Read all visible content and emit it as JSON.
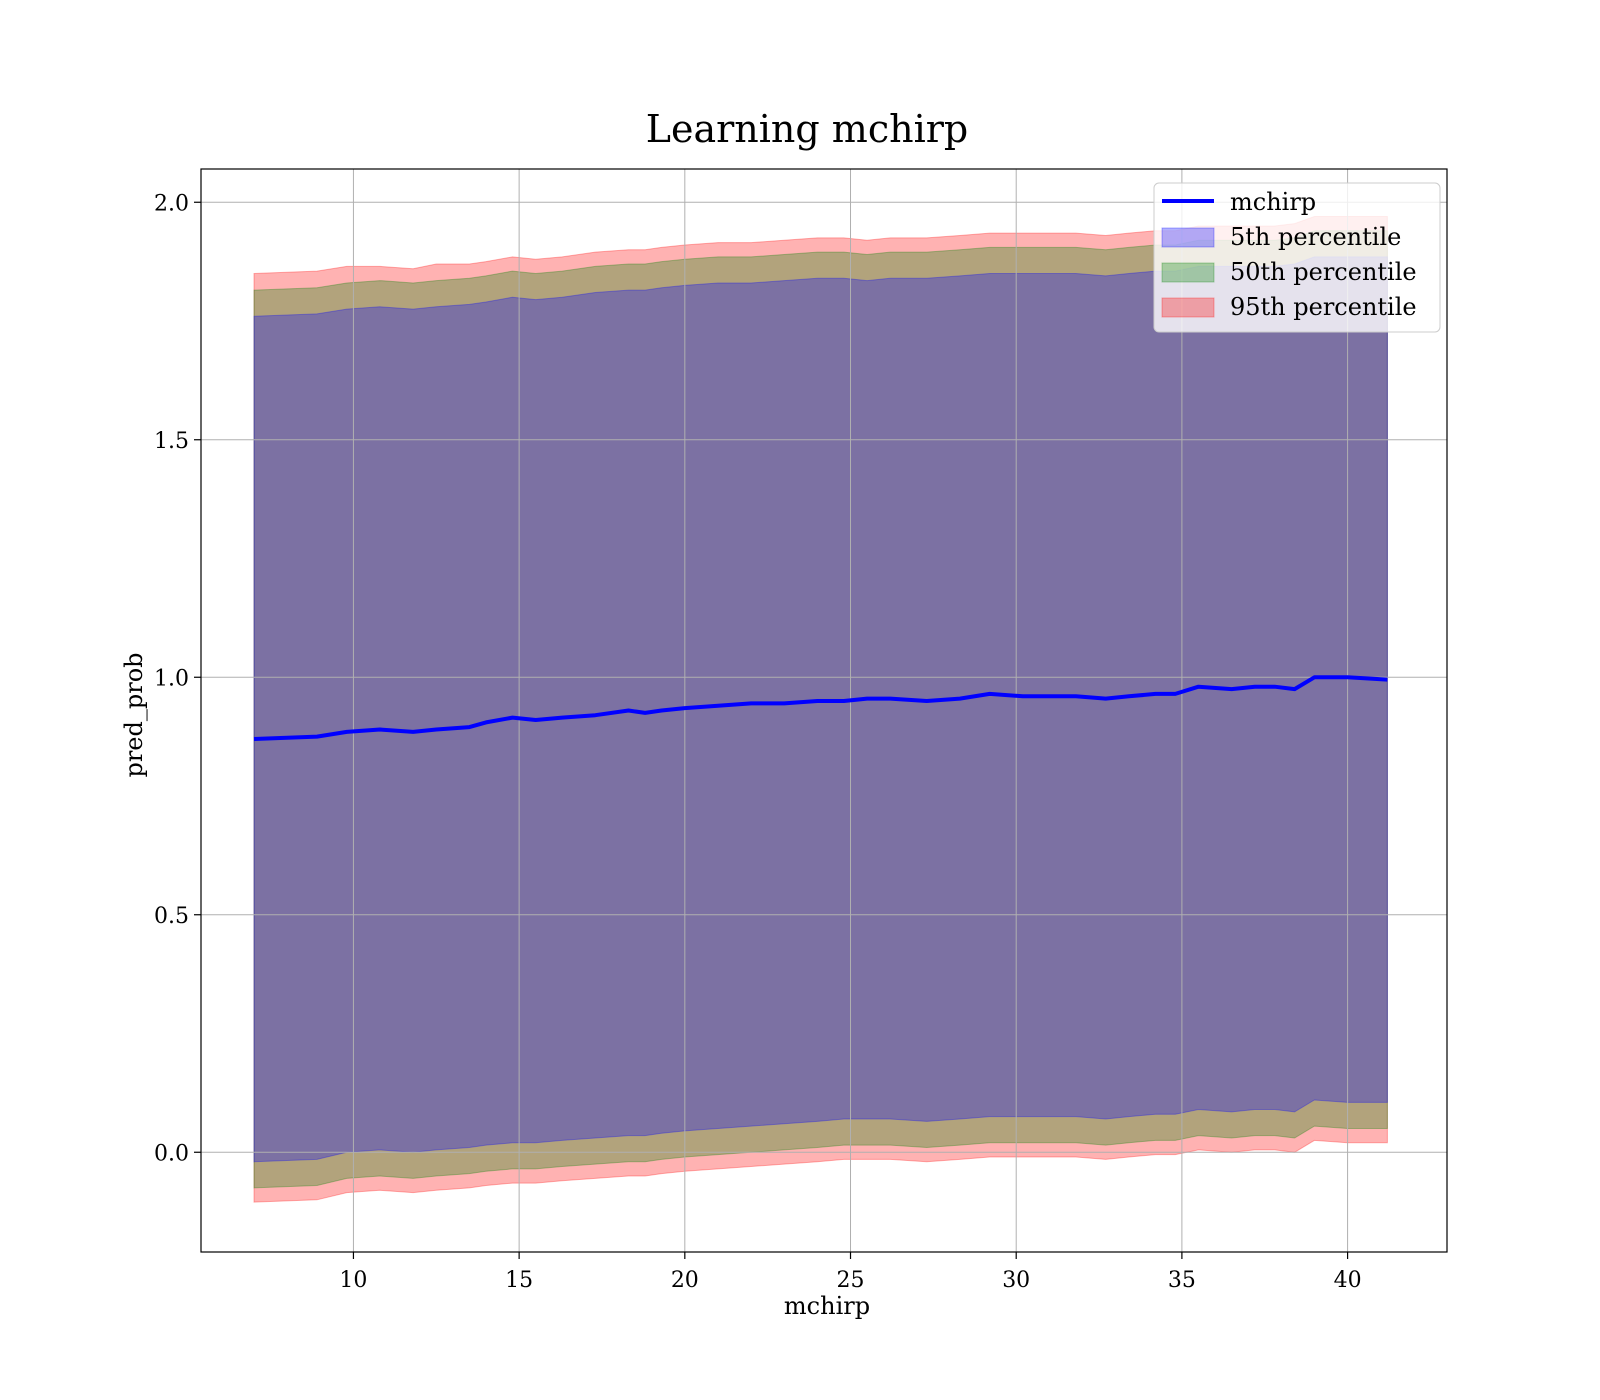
{
  "chart_data": {
    "type": "area",
    "title": "Learning mchirp",
    "xlabel": "mchirp",
    "ylabel": "pred_prob",
    "xlim": [
      5.4,
      43.0
    ],
    "ylim": [
      -0.21,
      2.07
    ],
    "xticks": [
      10,
      15,
      20,
      25,
      30,
      35,
      40
    ],
    "yticks": [
      0.0,
      0.5,
      1.0,
      1.5,
      2.0
    ],
    "xtick_labels": [
      "10",
      "15",
      "20",
      "25",
      "30",
      "35",
      "40"
    ],
    "ytick_labels": [
      "0.0",
      "0.5",
      "1.0",
      "1.5",
      "2.0"
    ],
    "grid": true,
    "legend_position": "top-right",
    "x": [
      7.0,
      8.9,
      9.8,
      10.8,
      11.8,
      12.5,
      13.5,
      14.0,
      14.8,
      15.5,
      16.3,
      17.3,
      18.3,
      18.8,
      19.3,
      20.0,
      21.0,
      22.0,
      23.0,
      24.0,
      24.8,
      25.5,
      26.2,
      27.3,
      28.3,
      29.2,
      30.2,
      31.2,
      31.8,
      32.7,
      33.4,
      34.2,
      34.8,
      35.5,
      36.5,
      37.2,
      37.8,
      38.4,
      39.0,
      40.0,
      41.2
    ],
    "line": {
      "name": "mchirp",
      "color": "#0000ff",
      "values": [
        0.87,
        0.875,
        0.885,
        0.89,
        0.885,
        0.89,
        0.895,
        0.905,
        0.915,
        0.91,
        0.915,
        0.92,
        0.93,
        0.925,
        0.93,
        0.935,
        0.94,
        0.945,
        0.945,
        0.95,
        0.95,
        0.955,
        0.955,
        0.95,
        0.955,
        0.965,
        0.96,
        0.96,
        0.96,
        0.955,
        0.96,
        0.965,
        0.965,
        0.98,
        0.975,
        0.98,
        0.98,
        0.975,
        1.0,
        1.0,
        0.995
      ]
    },
    "series": [
      {
        "name": "95th percentile",
        "color": "#ff0000",
        "upper": [
          1.85,
          1.855,
          1.865,
          1.865,
          1.86,
          1.87,
          1.87,
          1.875,
          1.885,
          1.88,
          1.885,
          1.895,
          1.9,
          1.9,
          1.905,
          1.91,
          1.915,
          1.915,
          1.92,
          1.925,
          1.925,
          1.92,
          1.925,
          1.925,
          1.93,
          1.935,
          1.935,
          1.935,
          1.935,
          1.93,
          1.935,
          1.94,
          1.94,
          1.95,
          1.95,
          1.95,
          1.95,
          1.955,
          1.97,
          1.97,
          1.97
        ],
        "lower": [
          -0.105,
          -0.1,
          -0.085,
          -0.08,
          -0.085,
          -0.08,
          -0.075,
          -0.07,
          -0.065,
          -0.065,
          -0.06,
          -0.055,
          -0.05,
          -0.05,
          -0.045,
          -0.04,
          -0.035,
          -0.03,
          -0.025,
          -0.02,
          -0.015,
          -0.015,
          -0.015,
          -0.02,
          -0.015,
          -0.01,
          -0.01,
          -0.01,
          -0.01,
          -0.015,
          -0.01,
          -0.005,
          -0.005,
          0.005,
          0.0,
          0.005,
          0.005,
          0.0,
          0.025,
          0.02,
          0.02
        ]
      },
      {
        "name": "50th percentile",
        "color": "#008000",
        "upper": [
          1.815,
          1.82,
          1.83,
          1.835,
          1.83,
          1.835,
          1.84,
          1.845,
          1.855,
          1.85,
          1.855,
          1.865,
          1.87,
          1.87,
          1.875,
          1.88,
          1.885,
          1.885,
          1.89,
          1.895,
          1.895,
          1.89,
          1.895,
          1.895,
          1.9,
          1.905,
          1.905,
          1.905,
          1.905,
          1.9,
          1.905,
          1.91,
          1.91,
          1.92,
          1.92,
          1.92,
          1.92,
          1.925,
          1.94,
          1.94,
          1.94
        ],
        "lower": [
          -0.075,
          -0.07,
          -0.055,
          -0.05,
          -0.055,
          -0.05,
          -0.045,
          -0.04,
          -0.035,
          -0.035,
          -0.03,
          -0.025,
          -0.02,
          -0.02,
          -0.015,
          -0.01,
          -0.005,
          0.0,
          0.005,
          0.01,
          0.015,
          0.015,
          0.015,
          0.01,
          0.015,
          0.02,
          0.02,
          0.02,
          0.02,
          0.015,
          0.02,
          0.025,
          0.025,
          0.035,
          0.03,
          0.035,
          0.035,
          0.03,
          0.055,
          0.05,
          0.05
        ]
      },
      {
        "name": "5th percentile",
        "color": "#0000ff",
        "upper": [
          1.76,
          1.765,
          1.775,
          1.78,
          1.775,
          1.78,
          1.785,
          1.79,
          1.8,
          1.795,
          1.8,
          1.81,
          1.815,
          1.815,
          1.82,
          1.825,
          1.83,
          1.83,
          1.835,
          1.84,
          1.84,
          1.835,
          1.84,
          1.84,
          1.845,
          1.85,
          1.85,
          1.85,
          1.85,
          1.845,
          1.85,
          1.855,
          1.855,
          1.865,
          1.865,
          1.865,
          1.865,
          1.87,
          1.885,
          1.885,
          1.885
        ],
        "lower": [
          -0.02,
          -0.015,
          0.0,
          0.005,
          0.0,
          0.005,
          0.01,
          0.015,
          0.02,
          0.02,
          0.025,
          0.03,
          0.035,
          0.035,
          0.04,
          0.045,
          0.05,
          0.055,
          0.06,
          0.065,
          0.07,
          0.07,
          0.07,
          0.065,
          0.07,
          0.075,
          0.075,
          0.075,
          0.075,
          0.07,
          0.075,
          0.08,
          0.08,
          0.09,
          0.085,
          0.09,
          0.09,
          0.085,
          0.11,
          0.105,
          0.105
        ]
      }
    ],
    "legend": [
      "mchirp",
      "5th percentile",
      "50th percentile",
      "95th percentile"
    ]
  }
}
